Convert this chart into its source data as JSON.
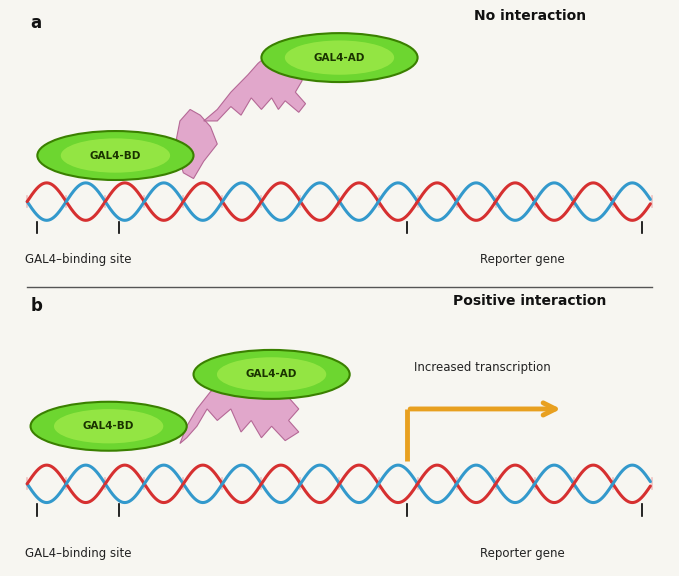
{
  "bg_color": "#f7f6f1",
  "dna_red": "#d63030",
  "dna_blue": "#3399cc",
  "dna_pink_link": "#e8a0a0",
  "gal4_green": "#6dd630",
  "gal4_green_edge": "#3a8000",
  "linker_pink": "#e0a0c8",
  "linker_pink_edge": "#b06090",
  "arrow_color": "#e8a020",
  "title_color": "#111111",
  "label_color": "#222222",
  "title_a": "No interaction",
  "title_b": "Positive interaction",
  "label_bd": "GAL4-BD",
  "label_ad": "GAL4-AD",
  "label_binding": "GAL4–binding site",
  "label_reporter": "Reporter gene",
  "label_increased": "Increased transcription",
  "panel_a_label": "a",
  "panel_b_label": "b",
  "sep_line_color": "#555555"
}
